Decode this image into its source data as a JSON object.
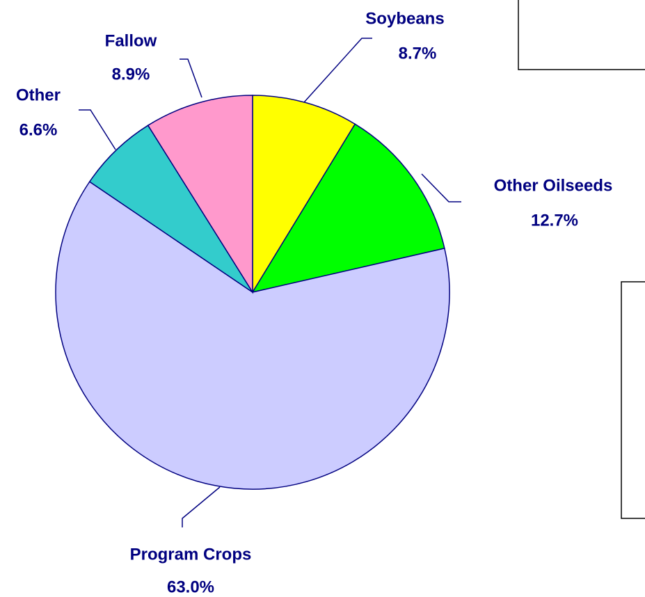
{
  "chart_data": {
    "type": "pie",
    "categories": [
      "Soybeans",
      "Other Oilseeds",
      "Program Crops",
      "Other",
      "Fallow"
    ],
    "values": [
      8.7,
      12.7,
      63.0,
      6.6,
      8.9
    ],
    "value_labels": [
      "8.7%",
      "12.7%",
      "63.0%",
      "6.6%",
      "8.9%"
    ],
    "colors": [
      "#ffff00",
      "#00ff00",
      "#ccccff",
      "#33cccc",
      "#ff99cc"
    ],
    "start_angle": 90,
    "direction": "clockwise"
  }
}
